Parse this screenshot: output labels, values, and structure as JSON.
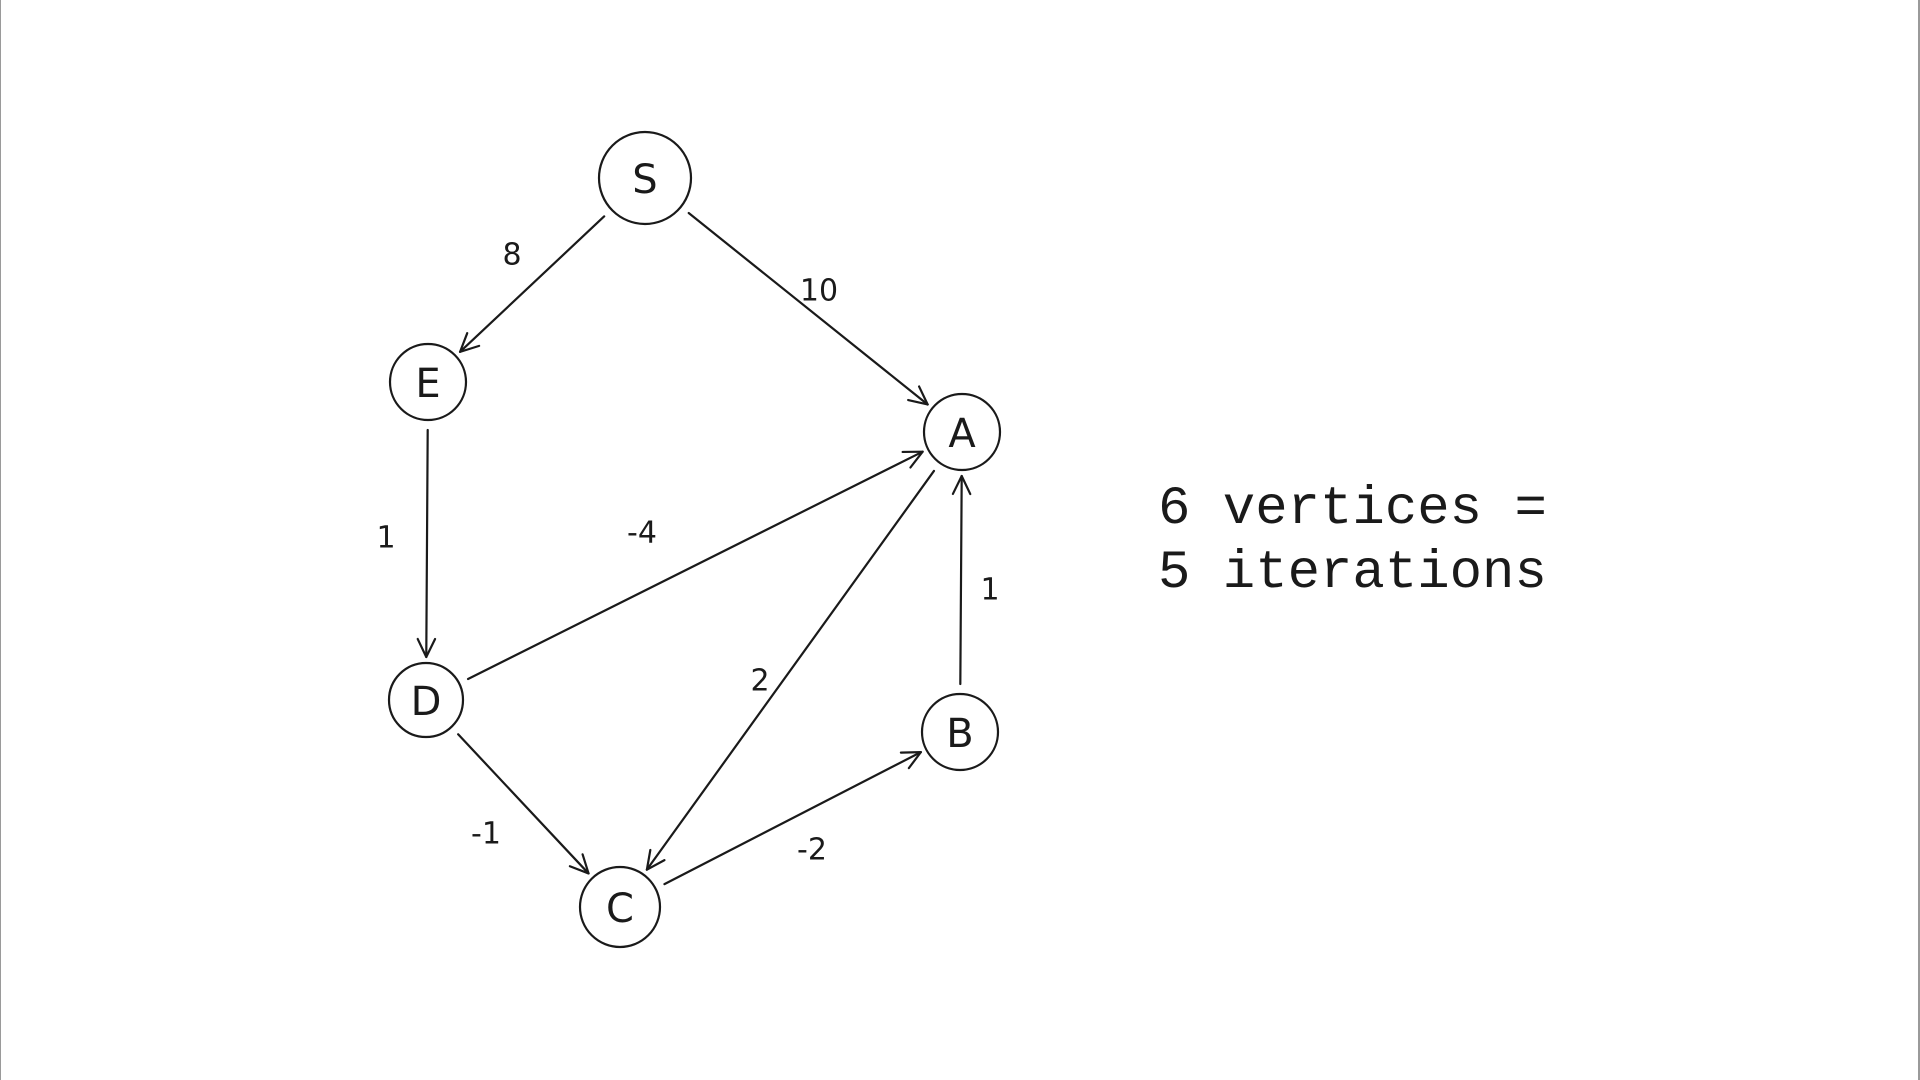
{
  "graph": {
    "nodes": [
      {
        "id": "S",
        "label": "S"
      },
      {
        "id": "E",
        "label": "E"
      },
      {
        "id": "A",
        "label": "A"
      },
      {
        "id": "D",
        "label": "D"
      },
      {
        "id": "B",
        "label": "B"
      },
      {
        "id": "C",
        "label": "C"
      }
    ],
    "edges": [
      {
        "from": "S",
        "to": "E",
        "weight": "8"
      },
      {
        "from": "S",
        "to": "A",
        "weight": "10"
      },
      {
        "from": "E",
        "to": "D",
        "weight": "1"
      },
      {
        "from": "D",
        "to": "A",
        "weight": "-4"
      },
      {
        "from": "A",
        "to": "C",
        "weight": "2"
      },
      {
        "from": "D",
        "to": "C",
        "weight": "-1"
      },
      {
        "from": "C",
        "to": "B",
        "weight": "-2"
      },
      {
        "from": "B",
        "to": "A",
        "weight": "1"
      }
    ]
  },
  "note": {
    "line1": "6 vertices =",
    "line2": "5 iterations"
  }
}
